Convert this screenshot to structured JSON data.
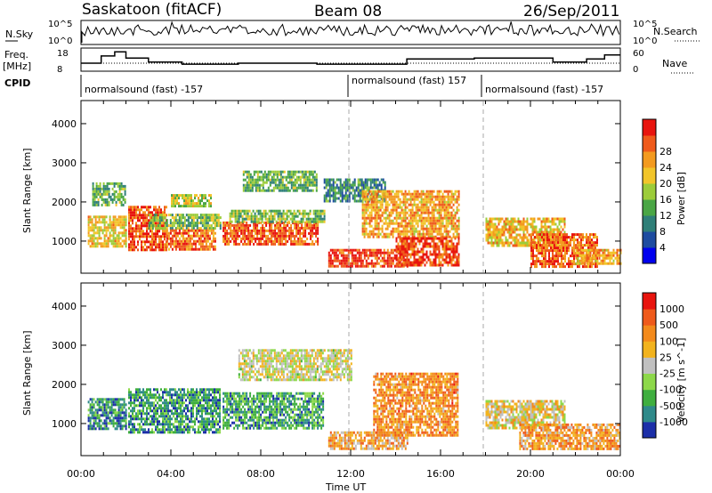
{
  "header": {
    "station": "Saskatoon (fitACF)",
    "beam": "Beam 08",
    "date": "26/Sep/2011"
  },
  "top_panels": {
    "nsky_label": "N.Sky",
    "nsky_ticks": [
      "10^5",
      "10^0"
    ],
    "nsearch_label": "N.Search",
    "nsearch_ticks": [
      "10^5",
      "10^0"
    ],
    "freq_label_1": "Freq.",
    "freq_label_2": "[MHz]",
    "freq_ticks": [
      "18",
      "8"
    ],
    "nave_label": "Nave",
    "nave_ticks": [
      "60",
      "0"
    ],
    "cpid_label": "CPID",
    "cpid_segments": [
      {
        "start_hour": 0,
        "text": "normalsound (fast) -157"
      },
      {
        "start_hour": 12,
        "text": "normalsound (fast) 157"
      },
      {
        "start_hour": 18,
        "text": "normalsound (fast) -157"
      }
    ]
  },
  "chart_data": [
    {
      "type": "heatmap",
      "title": "",
      "quantity": "Power",
      "xlabel": "Time UT",
      "ylabel": "Slant Range [km]",
      "x_range_hours": [
        0,
        24
      ],
      "x_tick_labels": [
        "00:00",
        "04:00",
        "08:00",
        "12:00",
        "16:00",
        "20:00",
        "00:00"
      ],
      "ylim": [
        180,
        4590
      ],
      "y_tick_labels": [
        "1000",
        "2000",
        "3000",
        "4000"
      ],
      "dashed_vertical_lines_hours": [
        12,
        18
      ],
      "colorbar": {
        "label": "Power [dB]",
        "range": [
          0,
          32
        ],
        "ticks": [
          "4",
          "8",
          "12",
          "16",
          "20",
          "24",
          "28"
        ],
        "colors": [
          "#0000ee",
          "#1e4ca0",
          "#2f7f78",
          "#4aa645",
          "#9ccc3a",
          "#f2c52a",
          "#f39a1f",
          "#ef5a1b",
          "#e8140e"
        ]
      },
      "echo_regions": [
        {
          "t0": 0.3,
          "t1": 2.0,
          "r0": 850,
          "r1": 1650,
          "level": 0.62
        },
        {
          "t0": 0.5,
          "t1": 2.0,
          "r0": 1900,
          "r1": 2500,
          "level": 0.4
        },
        {
          "t0": 2.1,
          "t1": 3.8,
          "r0": 800,
          "r1": 1900,
          "level": 0.85
        },
        {
          "t0": 3.0,
          "t1": 6.2,
          "r0": 1300,
          "r1": 1700,
          "level": 0.45
        },
        {
          "t0": 3.8,
          "t1": 6.0,
          "r0": 800,
          "r1": 1300,
          "level": 0.8
        },
        {
          "t0": 4.0,
          "t1": 5.8,
          "r0": 1900,
          "r1": 2200,
          "level": 0.55
        },
        {
          "t0": 6.3,
          "t1": 10.5,
          "r0": 900,
          "r1": 1500,
          "level": 0.85
        },
        {
          "t0": 6.6,
          "t1": 10.8,
          "r0": 1500,
          "r1": 1800,
          "level": 0.45
        },
        {
          "t0": 7.2,
          "t1": 10.5,
          "r0": 2300,
          "r1": 2800,
          "level": 0.4
        },
        {
          "t0": 10.8,
          "t1": 13.5,
          "r0": 2000,
          "r1": 2600,
          "level": 0.3
        },
        {
          "t0": 11.0,
          "t1": 14.5,
          "r0": 380,
          "r1": 800,
          "level": 0.9
        },
        {
          "t0": 12.5,
          "t1": 16.8,
          "r0": 1100,
          "r1": 2300,
          "level": 0.7
        },
        {
          "t0": 14.0,
          "t1": 16.8,
          "r0": 380,
          "r1": 1100,
          "level": 0.88
        },
        {
          "t0": 18.0,
          "t1": 21.5,
          "r0": 900,
          "r1": 1600,
          "level": 0.65
        },
        {
          "t0": 20.0,
          "t1": 23.0,
          "r0": 380,
          "r1": 1200,
          "level": 0.82
        },
        {
          "t0": 22.0,
          "t1": 24.0,
          "r0": 400,
          "r1": 800,
          "level": 0.7
        }
      ]
    },
    {
      "type": "heatmap",
      "title": "",
      "quantity": "Velocity",
      "xlabel": "Time UT",
      "ylabel": "Slant Range [km]",
      "x_range_hours": [
        0,
        24
      ],
      "x_tick_labels": [
        "00:00",
        "04:00",
        "08:00",
        "12:00",
        "16:00",
        "20:00",
        "00:00"
      ],
      "ylim": [
        180,
        4590
      ],
      "y_tick_labels": [
        "1000",
        "2000",
        "3000",
        "4000"
      ],
      "dashed_vertical_lines_hours": [
        12,
        18
      ],
      "colorbar": {
        "label": "Velocity [m s^-1]",
        "ticks": [
          "1000",
          "500",
          "100",
          "25",
          "-25",
          "-100",
          "-500",
          "-1000"
        ],
        "colors": [
          "#1c2fa8",
          "#2f8a8a",
          "#3fae3f",
          "#8dd84a",
          "#c0c0c0",
          "#f2b31e",
          "#f38a1c",
          "#ef5a1b",
          "#e8140e"
        ]
      },
      "echo_regions": [
        {
          "t0": 0.3,
          "t1": 2.0,
          "r0": 850,
          "r1": 1650,
          "level": 0.2
        },
        {
          "t0": 2.1,
          "t1": 6.2,
          "r0": 800,
          "r1": 1900,
          "level": 0.22
        },
        {
          "t0": 6.3,
          "t1": 10.8,
          "r0": 900,
          "r1": 1800,
          "level": 0.25
        },
        {
          "t0": 7.0,
          "t1": 12.0,
          "r0": 2100,
          "r1": 2900,
          "level": 0.5
        },
        {
          "t0": 11.0,
          "t1": 14.5,
          "r0": 380,
          "r1": 800,
          "level": 0.65
        },
        {
          "t0": 13.0,
          "t1": 16.8,
          "r0": 700,
          "r1": 2300,
          "level": 0.72
        },
        {
          "t0": 18.0,
          "t1": 21.5,
          "r0": 900,
          "r1": 1600,
          "level": 0.55
        },
        {
          "t0": 19.5,
          "t1": 24.0,
          "r0": 380,
          "r1": 1000,
          "level": 0.68
        }
      ]
    }
  ]
}
